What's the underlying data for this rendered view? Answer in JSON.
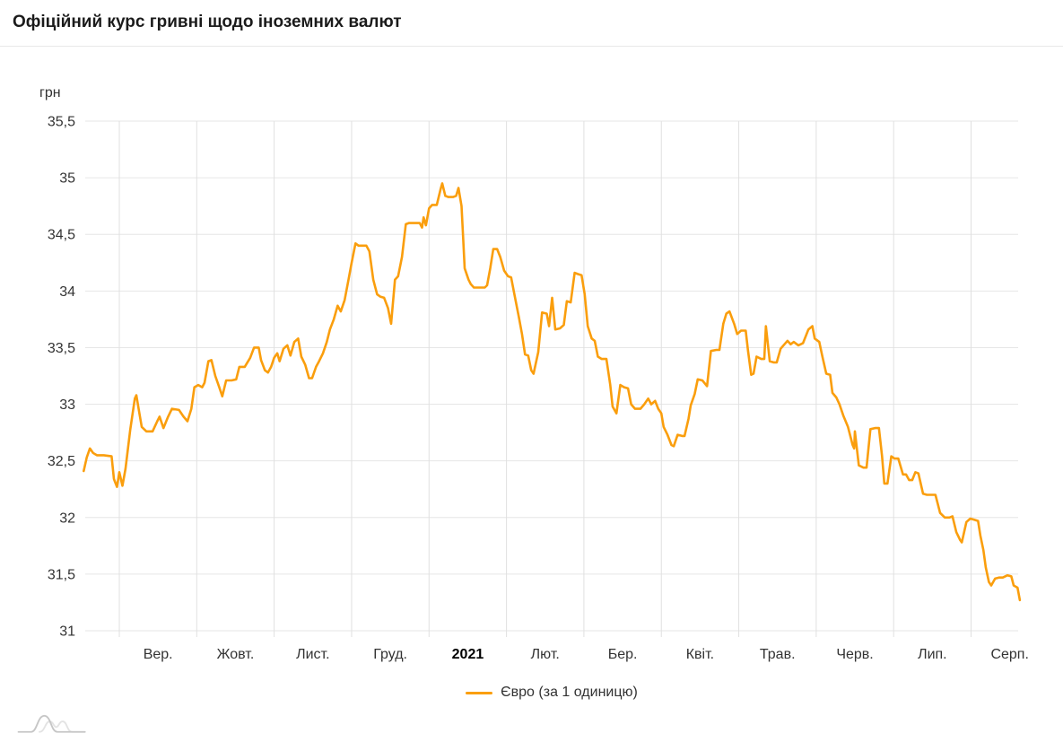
{
  "header": {
    "title": "Офіційний курс гривні щодо іноземних валют"
  },
  "legend": {
    "label": "Євро (за 1 одиницю)"
  },
  "icons": {
    "footer_logo": "wave-chart-logo"
  },
  "colors": {
    "series_orange": "#fa9e0d",
    "h_grid": "#e6e6e6",
    "v_grid": "#e0e0e0",
    "tick_text": "#333333"
  },
  "chart_data": {
    "type": "line",
    "title": "Офіційний курс гривні щодо іноземних валют",
    "unit_label": "грн",
    "xlabel": "",
    "ylabel": "грн",
    "ylim": [
      31,
      35.5
    ],
    "y_tick_step": 0.5,
    "y_ticks": [
      "35,5",
      "35",
      "34,5",
      "34",
      "33,5",
      "33",
      "32,5",
      "32",
      "31,5",
      "31"
    ],
    "x_ticks": [
      {
        "label": "Вер.",
        "bold": false
      },
      {
        "label": "Жовт.",
        "bold": false
      },
      {
        "label": "Лист.",
        "bold": false
      },
      {
        "label": "Груд.",
        "bold": false
      },
      {
        "label": "2021",
        "bold": true
      },
      {
        "label": "Лют.",
        "bold": false
      },
      {
        "label": "Бер.",
        "bold": false
      },
      {
        "label": "Квіт.",
        "bold": false
      },
      {
        "label": "Трав.",
        "bold": false
      },
      {
        "label": "Черв.",
        "bold": false
      },
      {
        "label": "Лип.",
        "bold": false
      },
      {
        "label": "Серп.",
        "bold": false
      }
    ],
    "grid": true,
    "legend_position": "bottom",
    "x_unit": "months since 2020-09-01 (0 = Вер. 1, 11 = Серп. 1)",
    "series": [
      {
        "name": "Євро (за 1 одиницю)",
        "color": "#fa9e0d",
        "points": [
          [
            -0.46,
            32.41
          ],
          [
            -0.42,
            32.53
          ],
          [
            -0.38,
            32.61
          ],
          [
            -0.34,
            32.57
          ],
          [
            -0.29,
            32.55
          ],
          [
            -0.2,
            32.55
          ],
          [
            -0.1,
            32.54
          ],
          [
            -0.07,
            32.34
          ],
          [
            -0.03,
            32.27
          ],
          [
            0.0,
            32.4
          ],
          [
            0.04,
            32.28
          ],
          [
            0.08,
            32.43
          ],
          [
            0.14,
            32.77
          ],
          [
            0.2,
            33.05
          ],
          [
            0.22,
            33.08
          ],
          [
            0.26,
            32.92
          ],
          [
            0.29,
            32.8
          ],
          [
            0.35,
            32.76
          ],
          [
            0.43,
            32.76
          ],
          [
            0.49,
            32.85
          ],
          [
            0.52,
            32.89
          ],
          [
            0.57,
            32.79
          ],
          [
            0.63,
            32.89
          ],
          [
            0.68,
            32.96
          ],
          [
            0.77,
            32.95
          ],
          [
            0.83,
            32.89
          ],
          [
            0.88,
            32.85
          ],
          [
            0.93,
            32.96
          ],
          [
            0.97,
            33.15
          ],
          [
            1.02,
            33.17
          ],
          [
            1.07,
            33.15
          ],
          [
            1.1,
            33.19
          ],
          [
            1.15,
            33.38
          ],
          [
            1.19,
            33.39
          ],
          [
            1.24,
            33.25
          ],
          [
            1.29,
            33.15
          ],
          [
            1.33,
            33.07
          ],
          [
            1.38,
            33.21
          ],
          [
            1.45,
            33.21
          ],
          [
            1.51,
            33.22
          ],
          [
            1.55,
            33.33
          ],
          [
            1.62,
            33.33
          ],
          [
            1.69,
            33.41
          ],
          [
            1.74,
            33.5
          ],
          [
            1.8,
            33.5
          ],
          [
            1.83,
            33.39
          ],
          [
            1.88,
            33.3
          ],
          [
            1.92,
            33.28
          ],
          [
            1.96,
            33.33
          ],
          [
            2.0,
            33.41
          ],
          [
            2.04,
            33.45
          ],
          [
            2.07,
            33.38
          ],
          [
            2.12,
            33.49
          ],
          [
            2.17,
            33.52
          ],
          [
            2.21,
            33.43
          ],
          [
            2.26,
            33.55
          ],
          [
            2.31,
            33.58
          ],
          [
            2.35,
            33.42
          ],
          [
            2.4,
            33.35
          ],
          [
            2.45,
            33.23
          ],
          [
            2.49,
            33.23
          ],
          [
            2.54,
            33.33
          ],
          [
            2.58,
            33.38
          ],
          [
            2.63,
            33.45
          ],
          [
            2.68,
            33.55
          ],
          [
            2.72,
            33.66
          ],
          [
            2.77,
            33.75
          ],
          [
            2.82,
            33.87
          ],
          [
            2.86,
            33.82
          ],
          [
            2.91,
            33.92
          ],
          [
            2.96,
            34.1
          ],
          [
            3.0,
            34.25
          ],
          [
            3.05,
            34.42
          ],
          [
            3.09,
            34.4
          ],
          [
            3.14,
            34.4
          ],
          [
            3.19,
            34.4
          ],
          [
            3.23,
            34.35
          ],
          [
            3.28,
            34.1
          ],
          [
            3.33,
            33.97
          ],
          [
            3.37,
            33.95
          ],
          [
            3.42,
            33.94
          ],
          [
            3.47,
            33.85
          ],
          [
            3.51,
            33.71
          ],
          [
            3.56,
            34.1
          ],
          [
            3.6,
            34.13
          ],
          [
            3.65,
            34.3
          ],
          [
            3.7,
            34.59
          ],
          [
            3.74,
            34.6
          ],
          [
            3.81,
            34.6
          ],
          [
            3.88,
            34.6
          ],
          [
            3.91,
            34.56
          ],
          [
            3.93,
            34.65
          ],
          [
            3.96,
            34.58
          ],
          [
            4.0,
            34.73
          ],
          [
            4.04,
            34.76
          ],
          [
            4.1,
            34.76
          ],
          [
            4.15,
            34.9
          ],
          [
            4.17,
            34.95
          ],
          [
            4.21,
            34.84
          ],
          [
            4.25,
            34.83
          ],
          [
            4.31,
            34.83
          ],
          [
            4.35,
            34.84
          ],
          [
            4.38,
            34.91
          ],
          [
            4.42,
            34.75
          ],
          [
            4.44,
            34.47
          ],
          [
            4.46,
            34.2
          ],
          [
            4.51,
            34.1
          ],
          [
            4.54,
            34.06
          ],
          [
            4.58,
            34.03
          ],
          [
            4.65,
            34.03
          ],
          [
            4.72,
            34.03
          ],
          [
            4.75,
            34.05
          ],
          [
            4.79,
            34.2
          ],
          [
            4.83,
            34.37
          ],
          [
            4.88,
            34.37
          ],
          [
            4.92,
            34.3
          ],
          [
            4.97,
            34.18
          ],
          [
            5.02,
            34.13
          ],
          [
            5.06,
            34.12
          ],
          [
            5.1,
            33.98
          ],
          [
            5.16,
            33.77
          ],
          [
            5.2,
            33.62
          ],
          [
            5.24,
            33.44
          ],
          [
            5.28,
            33.43
          ],
          [
            5.32,
            33.3
          ],
          [
            5.35,
            33.27
          ],
          [
            5.41,
            33.46
          ],
          [
            5.46,
            33.81
          ],
          [
            5.52,
            33.8
          ],
          [
            5.55,
            33.69
          ],
          [
            5.59,
            33.94
          ],
          [
            5.63,
            33.66
          ],
          [
            5.69,
            33.67
          ],
          [
            5.74,
            33.7
          ],
          [
            5.78,
            33.91
          ],
          [
            5.83,
            33.9
          ],
          [
            5.88,
            34.16
          ],
          [
            5.92,
            34.15
          ],
          [
            5.97,
            34.14
          ],
          [
            6.01,
            33.97
          ],
          [
            6.05,
            33.69
          ],
          [
            6.1,
            33.58
          ],
          [
            6.14,
            33.56
          ],
          [
            6.18,
            33.42
          ],
          [
            6.23,
            33.4
          ],
          [
            6.29,
            33.4
          ],
          [
            6.34,
            33.17
          ],
          [
            6.37,
            32.98
          ],
          [
            6.42,
            32.92
          ],
          [
            6.47,
            33.17
          ],
          [
            6.52,
            33.15
          ],
          [
            6.57,
            33.14
          ],
          [
            6.61,
            33.0
          ],
          [
            6.66,
            32.96
          ],
          [
            6.73,
            32.96
          ],
          [
            6.78,
            33.0
          ],
          [
            6.83,
            33.05
          ],
          [
            6.87,
            33.0
          ],
          [
            6.92,
            33.03
          ],
          [
            6.96,
            32.96
          ],
          [
            7.0,
            32.92
          ],
          [
            7.03,
            32.8
          ],
          [
            7.08,
            32.73
          ],
          [
            7.13,
            32.64
          ],
          [
            7.16,
            32.63
          ],
          [
            7.21,
            32.73
          ],
          [
            7.27,
            32.72
          ],
          [
            7.3,
            32.72
          ],
          [
            7.35,
            32.87
          ],
          [
            7.38,
            32.99
          ],
          [
            7.43,
            33.09
          ],
          [
            7.47,
            33.22
          ],
          [
            7.53,
            33.21
          ],
          [
            7.59,
            33.16
          ],
          [
            7.64,
            33.47
          ],
          [
            7.71,
            33.48
          ],
          [
            7.75,
            33.48
          ],
          [
            7.8,
            33.71
          ],
          [
            7.84,
            33.8
          ],
          [
            7.88,
            33.82
          ],
          [
            7.94,
            33.71
          ],
          [
            7.98,
            33.62
          ],
          [
            8.03,
            33.65
          ],
          [
            8.09,
            33.65
          ],
          [
            8.12,
            33.47
          ],
          [
            8.16,
            33.26
          ],
          [
            8.19,
            33.27
          ],
          [
            8.23,
            33.42
          ],
          [
            8.29,
            33.4
          ],
          [
            8.33,
            33.4
          ],
          [
            8.35,
            33.69
          ],
          [
            8.4,
            33.38
          ],
          [
            8.45,
            33.37
          ],
          [
            8.49,
            33.37
          ],
          [
            8.54,
            33.49
          ],
          [
            8.59,
            33.53
          ],
          [
            8.63,
            33.56
          ],
          [
            8.67,
            33.53
          ],
          [
            8.71,
            33.55
          ],
          [
            8.77,
            33.52
          ],
          [
            8.83,
            33.54
          ],
          [
            8.9,
            33.66
          ],
          [
            8.95,
            33.69
          ],
          [
            8.98,
            33.58
          ],
          [
            9.04,
            33.55
          ],
          [
            9.08,
            33.42
          ],
          [
            9.13,
            33.27
          ],
          [
            9.18,
            33.26
          ],
          [
            9.21,
            33.1
          ],
          [
            9.26,
            33.06
          ],
          [
            9.3,
            33.0
          ],
          [
            9.35,
            32.9
          ],
          [
            9.41,
            32.8
          ],
          [
            9.47,
            32.64
          ],
          [
            9.49,
            32.61
          ],
          [
            9.5,
            32.76
          ],
          [
            9.55,
            32.46
          ],
          [
            9.61,
            32.44
          ],
          [
            9.65,
            32.44
          ],
          [
            9.7,
            32.78
          ],
          [
            9.76,
            32.79
          ],
          [
            9.81,
            32.79
          ],
          [
            9.85,
            32.54
          ],
          [
            9.88,
            32.3
          ],
          [
            9.92,
            32.3
          ],
          [
            9.97,
            32.54
          ],
          [
            10.01,
            32.52
          ],
          [
            10.06,
            32.52
          ],
          [
            10.12,
            32.38
          ],
          [
            10.16,
            32.38
          ],
          [
            10.2,
            32.33
          ],
          [
            10.24,
            32.33
          ],
          [
            10.28,
            32.4
          ],
          [
            10.32,
            32.39
          ],
          [
            10.38,
            32.21
          ],
          [
            10.43,
            32.2
          ],
          [
            10.49,
            32.2
          ],
          [
            10.54,
            32.2
          ],
          [
            10.6,
            32.04
          ],
          [
            10.66,
            32.0
          ],
          [
            10.72,
            32.0
          ],
          [
            10.76,
            32.01
          ],
          [
            10.81,
            31.87
          ],
          [
            10.86,
            31.8
          ],
          [
            10.88,
            31.78
          ],
          [
            10.94,
            31.96
          ],
          [
            10.99,
            31.99
          ],
          [
            11.04,
            31.98
          ],
          [
            11.09,
            31.97
          ],
          [
            11.12,
            31.84
          ],
          [
            11.16,
            31.71
          ],
          [
            11.19,
            31.56
          ],
          [
            11.23,
            31.43
          ],
          [
            11.26,
            31.4
          ],
          [
            11.31,
            31.46
          ],
          [
            11.36,
            31.47
          ],
          [
            11.41,
            31.47
          ],
          [
            11.47,
            31.49
          ],
          [
            11.52,
            31.48
          ],
          [
            11.55,
            31.4
          ],
          [
            11.6,
            31.38
          ],
          [
            11.63,
            31.27
          ]
        ]
      }
    ]
  }
}
